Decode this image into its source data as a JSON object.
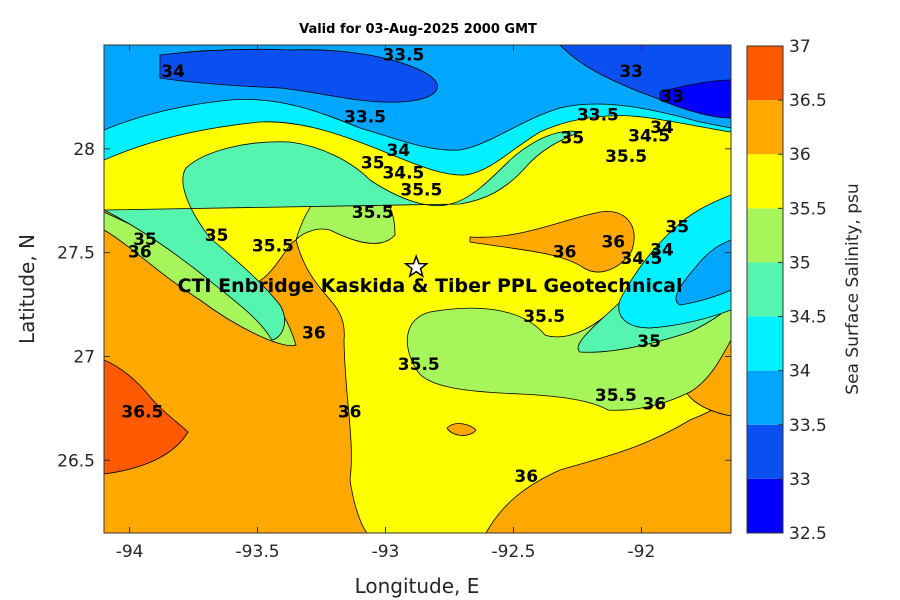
{
  "chart_data": {
    "type": "heatmap",
    "title": "Valid for 03-Aug-2025 2000 GMT",
    "xlabel": "Longitude, E",
    "ylabel": "Latitude, N",
    "xlim": [
      -94.1,
      -91.65
    ],
    "ylim": [
      26.15,
      28.5
    ],
    "xticks": [
      -94,
      -93.5,
      -93,
      -92.5,
      -92
    ],
    "xtick_labels": [
      "-94",
      "-93.5",
      "-93",
      "-92.5",
      "-92"
    ],
    "yticks": [
      26.5,
      27,
      27.5,
      28
    ],
    "ytick_labels": [
      "26.5",
      "27",
      "27.5",
      "28"
    ],
    "grid": false,
    "colorbar": {
      "label": "Sea Surface Salinity, psu",
      "levels": [
        32.5,
        33,
        33.5,
        34,
        34.5,
        35,
        35.5,
        36,
        36.5,
        37
      ],
      "tick_labels": [
        "32.5",
        "33",
        "33.5",
        "34",
        "34.5",
        "35",
        "35.5",
        "36",
        "36.5",
        "37"
      ],
      "colors": [
        "#0000ff",
        "#0a4ff0",
        "#00a6ff",
        "#00f0ff",
        "#55f5b0",
        "#a6f55a",
        "#ffff00",
        "#ffa800",
        "#ff5a00"
      ]
    },
    "marker": {
      "symbol": "star",
      "lon": -92.88,
      "lat": 27.43,
      "label": "CTI Enbridge  Kaskida & Tiber PPL Geotechnical"
    },
    "contour_labels": [
      {
        "text": "33.5",
        "lon": -92.93,
        "lat": 28.45
      },
      {
        "text": "34",
        "lon": -93.83,
        "lat": 28.37
      },
      {
        "text": "33",
        "lon": -92.04,
        "lat": 28.37
      },
      {
        "text": "33",
        "lon": -91.88,
        "lat": 28.25
      },
      {
        "text": "33.5",
        "lon": -93.08,
        "lat": 28.15
      },
      {
        "text": "33.5",
        "lon": -92.17,
        "lat": 28.16
      },
      {
        "text": "34.5",
        "lon": -91.97,
        "lat": 28.06
      },
      {
        "text": "34",
        "lon": -91.92,
        "lat": 28.1
      },
      {
        "text": "35",
        "lon": -92.27,
        "lat": 28.05
      },
      {
        "text": "34",
        "lon": -92.95,
        "lat": 27.99
      },
      {
        "text": "35",
        "lon": -93.05,
        "lat": 27.93
      },
      {
        "text": "34.5",
        "lon": -92.93,
        "lat": 27.88
      },
      {
        "text": "35.5",
        "lon": -92.06,
        "lat": 27.96
      },
      {
        "text": "35.5",
        "lon": -92.86,
        "lat": 27.8
      },
      {
        "text": "35.5",
        "lon": -93.05,
        "lat": 27.69
      },
      {
        "text": "35",
        "lon": -93.94,
        "lat": 27.56
      },
      {
        "text": "35",
        "lon": -93.66,
        "lat": 27.58
      },
      {
        "text": "35.5",
        "lon": -93.44,
        "lat": 27.53
      },
      {
        "text": "36",
        "lon": -93.96,
        "lat": 27.5
      },
      {
        "text": "36",
        "lon": -92.3,
        "lat": 27.5
      },
      {
        "text": "36",
        "lon": -92.11,
        "lat": 27.55
      },
      {
        "text": "34.5",
        "lon": -92.0,
        "lat": 27.47
      },
      {
        "text": "34",
        "lon": -91.92,
        "lat": 27.51
      },
      {
        "text": "35",
        "lon": -91.86,
        "lat": 27.62
      },
      {
        "text": "35.5",
        "lon": -92.38,
        "lat": 27.19
      },
      {
        "text": "36",
        "lon": -93.28,
        "lat": 27.11
      },
      {
        "text": "35",
        "lon": -91.97,
        "lat": 27.07
      },
      {
        "text": "35.5",
        "lon": -92.87,
        "lat": 26.96
      },
      {
        "text": "36.5",
        "lon": -93.95,
        "lat": 26.73
      },
      {
        "text": "36",
        "lon": -93.14,
        "lat": 26.73
      },
      {
        "text": "35.5",
        "lon": -92.1,
        "lat": 26.81
      },
      {
        "text": "36",
        "lon": -91.95,
        "lat": 26.77
      },
      {
        "text": "36",
        "lon": -92.45,
        "lat": 26.42
      }
    ]
  }
}
